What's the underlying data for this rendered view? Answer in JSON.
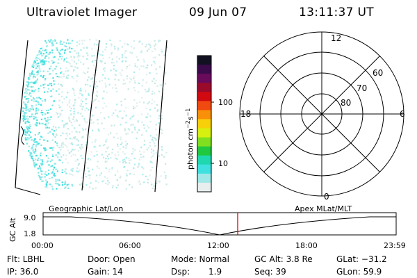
{
  "header": {
    "instrument": "Ultraviolet Imager",
    "date": "09 Jun 07",
    "time": "13:11:37 UT"
  },
  "colorbar": {
    "unit_label": "photon cm",
    "unit_exp1": "−2",
    "unit_s": "s",
    "unit_exp2": "−1",
    "ticks": [
      "100",
      "10"
    ],
    "colors": [
      "#111122",
      "#3a0a4a",
      "#6a0a5a",
      "#9a0a2a",
      "#d00a10",
      "#f04a10",
      "#f8900a",
      "#f8d00a",
      "#d8f010",
      "#80e020",
      "#20c840",
      "#20d8b0",
      "#40e0e0",
      "#a0e8e8",
      "#e8eeee"
    ]
  },
  "polar": {
    "mlt_labels": {
      "top": "12",
      "left": "18",
      "right": "6",
      "bottom": "0"
    },
    "mlat_labels": [
      "60",
      "70",
      "80"
    ]
  },
  "orbit": {
    "y_axis_title": "GC Alt",
    "y_ticks": [
      "9.0",
      "1.8"
    ],
    "left_title": "Geographic Lat/Lon",
    "right_title": "Apex MLat/MLT",
    "x_ticks": [
      "00:00",
      "06:00",
      "12:00",
      "18:00",
      "23:59"
    ],
    "marker_color": "#e00000"
  },
  "status": {
    "row1": {
      "flt": "Flt: LBHL",
      "door": "Door: Open",
      "mode": "Mode: Normal",
      "alt": "GC Alt: 3.8 Re",
      "glat": "GLat: −31.2"
    },
    "row2": {
      "ip": "IP: 36.0",
      "gain": "Gain: 14",
      "dsp_label": "Dsp:",
      "dsp_val": "1.9",
      "seq": "Seq: 39",
      "glon": "GLon: 59.9"
    }
  }
}
